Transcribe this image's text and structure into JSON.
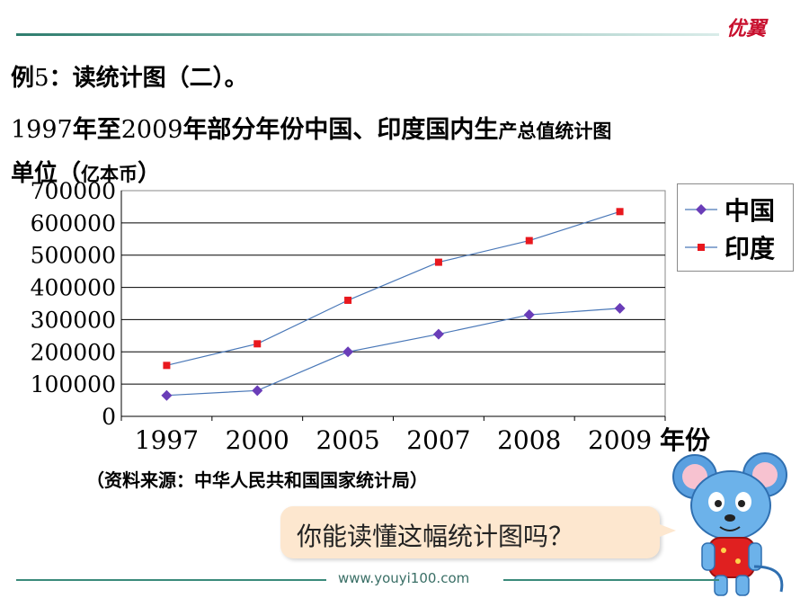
{
  "brand": {
    "logo_text": "优翼"
  },
  "example": {
    "label": "例",
    "number": "5",
    "separator": "：",
    "text": "读统计图（二）。"
  },
  "title": {
    "years": [
      "1997",
      "2009"
    ],
    "text_1": "年至",
    "text_2": "年部分年份中国、印度国内生",
    "text_3": "产总值统计图"
  },
  "unit": {
    "text": "单位（",
    "text_small": "亿本币",
    "close": "）"
  },
  "source": {
    "text": "（资料来源：中华人民共和国国家统计局）"
  },
  "question": {
    "text": "你能读懂这幅统计图吗？"
  },
  "footer": {
    "url": "www.youyi100.com"
  },
  "colors": {
    "china": "#6a3db8",
    "india": "#e8181e",
    "line": "#4a78b8",
    "axis": "#000000"
  },
  "chart_data": {
    "type": "line",
    "categories": [
      "1997",
      "2000",
      "2005",
      "2007",
      "2008",
      "2009"
    ],
    "series": [
      {
        "name": "中国",
        "marker": "diamond",
        "values": [
          65000,
          80000,
          200000,
          255000,
          315000,
          335000
        ]
      },
      {
        "name": "印度",
        "marker": "square",
        "values": [
          158000,
          225000,
          360000,
          478000,
          545000,
          635000
        ]
      }
    ],
    "y_ticks": [
      "0",
      "100000",
      "200000",
      "300000",
      "400000",
      "500000",
      "600000",
      "700000"
    ],
    "ylim": [
      0,
      700000
    ],
    "xlabel": "年份",
    "grid": true,
    "legend": "right"
  }
}
